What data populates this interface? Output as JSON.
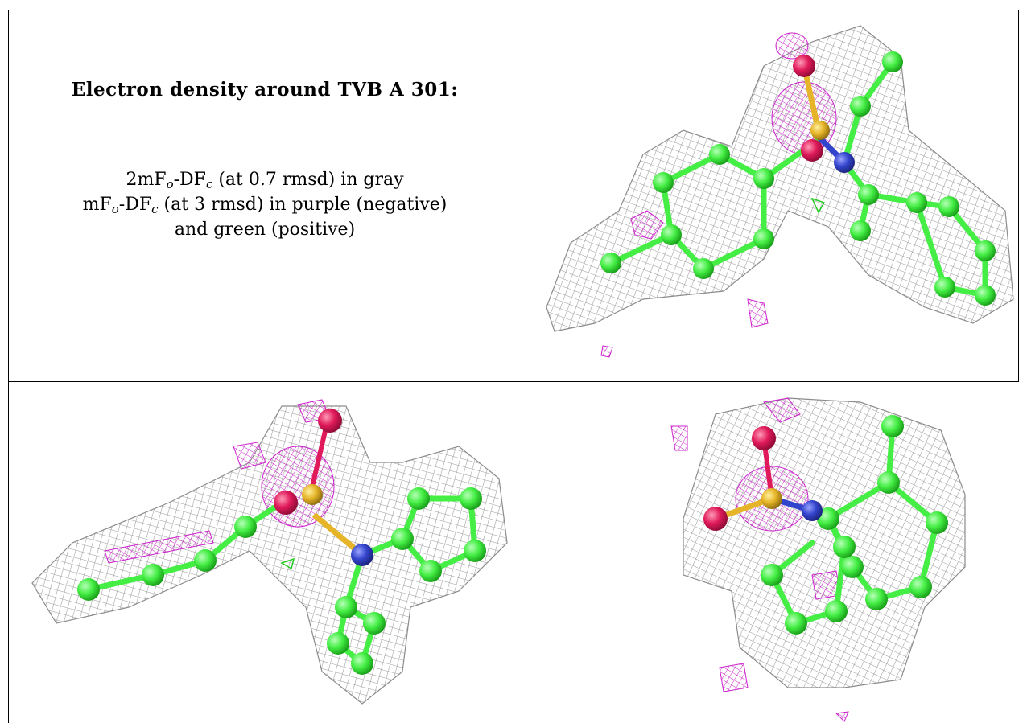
{
  "caption": {
    "title": "Electron density around TVB A 301:",
    "line1": {
      "prefix": "2mF",
      "sub1": "o",
      "mid": "-DF",
      "sub2": "c",
      "suffix": " (at 0.7 rmsd) in gray"
    },
    "line2": {
      "prefix": "mF",
      "sub1": "o",
      "mid": "-DF",
      "sub2": "c",
      "suffix": " (at 3 rmsd) in purple (negative)"
    },
    "line3": "and green (positive)"
  },
  "colors": {
    "mesh_gray": "#9a9a9a",
    "negative_purple": "#cc22cc",
    "positive_green": "#22cc22",
    "carbon_green": "#44ee44",
    "oxygen_red": "#e01a5a",
    "sulfur_yellow": "#e6b428",
    "nitrogen_blue": "#3344cc"
  }
}
